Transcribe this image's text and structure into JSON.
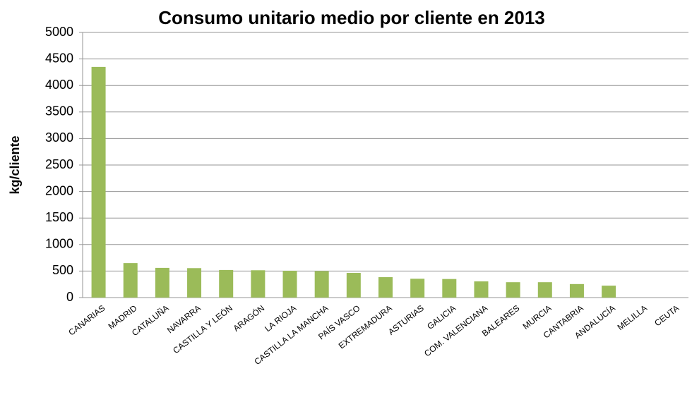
{
  "chart_data": {
    "type": "bar",
    "title": "Consumo unitario medio por cliente en 2013",
    "y_label": "kg/cliente",
    "categories": [
      "CANARIAS",
      "MADRID",
      "CATALUÑA",
      "NAVARRA",
      "CASTILLA Y LEÓN",
      "ARAGÓN",
      "LA RIOJA",
      "CASTILLA LA MANCHA",
      "PAÍS VASCO",
      "EXTREMADURA",
      "ASTURIAS",
      "GALICIA",
      "COM. VALENCIANA",
      "BALEARES",
      "MURCIA",
      "CANTABRIA",
      "ANDALUCÍA",
      "MELILLA",
      "CEUTA"
    ],
    "values": [
      4350,
      650,
      560,
      555,
      520,
      515,
      505,
      500,
      465,
      385,
      355,
      350,
      305,
      290,
      290,
      255,
      225,
      0,
      0
    ],
    "color": "#9bbb59",
    "ylim": [
      0,
      5000
    ],
    "yticks": [
      0,
      500,
      1000,
      1500,
      2000,
      2500,
      3000,
      3500,
      4000,
      4500,
      5000
    ],
    "grid": true
  }
}
